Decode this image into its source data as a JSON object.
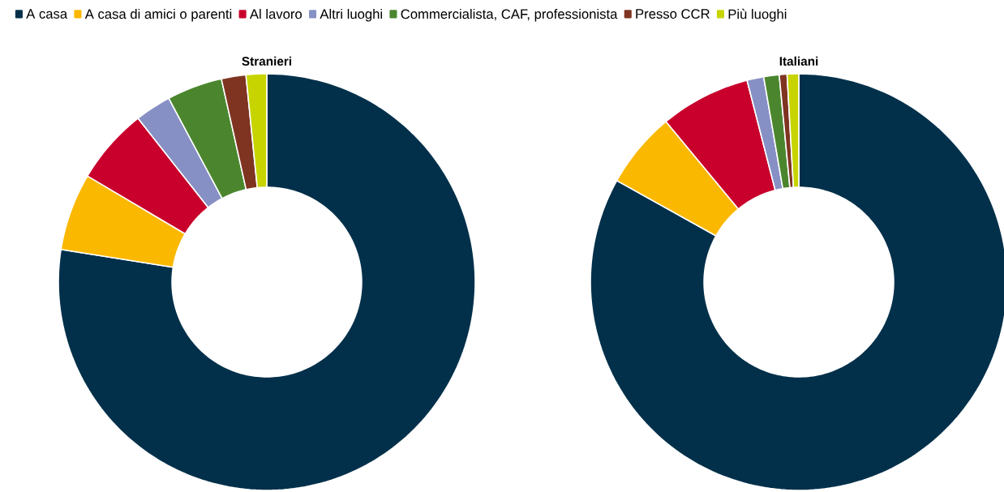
{
  "chart_data": [
    {
      "type": "donut",
      "title": "Stranieri",
      "legend": "top",
      "categories": [
        "A casa",
        "A casa di amici o parenti",
        "Al lavoro",
        "Altri luoghi",
        "Commercialista, CAF, professionista",
        "Presso CCR",
        "Più luoghi"
      ],
      "values": [
        77.5,
        6.0,
        5.9,
        2.8,
        4.3,
        1.9,
        1.6
      ],
      "colors": [
        "#02304a",
        "#fbb800",
        "#c8002b",
        "#8790c4",
        "#4b862e",
        "#7e3421",
        "#c8d400"
      ]
    },
    {
      "type": "donut",
      "title": "Italiani",
      "categories": [
        null,
        null,
        null,
        null,
        null,
        null,
        null
      ],
      "values": [
        83.1,
        5.9,
        7.0,
        1.3,
        1.2,
        0.6,
        0.9
      ],
      "colors": [
        "#02304a",
        "#fbb800",
        "#c8002b",
        "#8790c4",
        "#4b862e",
        "#7e3421",
        "#c8d400"
      ]
    }
  ]
}
